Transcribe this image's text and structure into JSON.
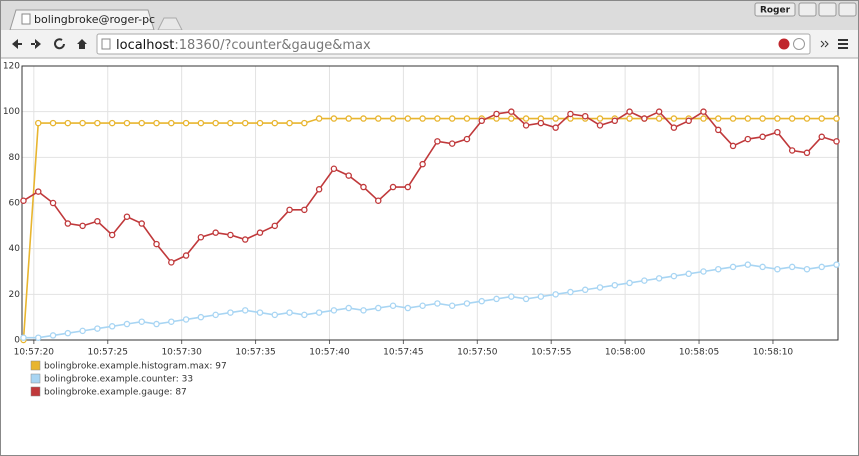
{
  "browser": {
    "tab_title": "bolingbroke@roger-pc",
    "user": "Roger",
    "url_host": "localhost",
    "url_rest": ":18360/?counter&gauge&max"
  },
  "chart_data": {
    "type": "line",
    "x": [
      19.3,
      20.3,
      21.3,
      22.3,
      23.3,
      24.3,
      25.3,
      26.3,
      27.3,
      28.3,
      29.3,
      30.3,
      31.3,
      32.3,
      33.3,
      34.3,
      35.3,
      36.3,
      37.3,
      38.3,
      39.3,
      40.3,
      41.3,
      42.3,
      43.3,
      44.3,
      45.3,
      46.3,
      47.3,
      48.3,
      49.3,
      50.3,
      51.3,
      52.3,
      53.3,
      54.3,
      55.3,
      56.3,
      57.3,
      58.3,
      59.3,
      60.3,
      61.3,
      62.3,
      63.3,
      64.3,
      65.3,
      66.3,
      67.3,
      68.3,
      69.3,
      70.3,
      71.3,
      72.3,
      73.3,
      74.3
    ],
    "xlim": [
      19.2,
      74.4
    ],
    "xticks": [
      {
        "value": 20,
        "label": "10:57:20"
      },
      {
        "value": 25,
        "label": "10:57:25"
      },
      {
        "value": 30,
        "label": "10:57:30"
      },
      {
        "value": 35,
        "label": "10:57:35"
      },
      {
        "value": 40,
        "label": "10:57:40"
      },
      {
        "value": 45,
        "label": "10:57:45"
      },
      {
        "value": 50,
        "label": "10:57:50"
      },
      {
        "value": 55,
        "label": "10:57:55"
      },
      {
        "value": 60,
        "label": "10:58:00"
      },
      {
        "value": 65,
        "label": "10:58:05"
      },
      {
        "value": 70,
        "label": "10:58:10"
      }
    ],
    "ylim": [
      0,
      120
    ],
    "yticks": [
      0,
      20,
      40,
      60,
      80,
      100,
      120
    ],
    "grid": true,
    "series": [
      {
        "name": "bolingbroke.example.histogram.max: 97",
        "color": "#e8b52f",
        "values": [
          0,
          95,
          95,
          95,
          95,
          95,
          95,
          95,
          95,
          95,
          95,
          95,
          95,
          95,
          95,
          95,
          95,
          95,
          95,
          95,
          97,
          97,
          97,
          97,
          97,
          97,
          97,
          97,
          97,
          97,
          97,
          97,
          97,
          97,
          97,
          97,
          97,
          97,
          97,
          97,
          97,
          97,
          97,
          97,
          97,
          97,
          97,
          97,
          97,
          97,
          97,
          97,
          97,
          97,
          97,
          97
        ]
      },
      {
        "name": "bolingbroke.example.counter: 33",
        "color": "#a8d5f3",
        "values": [
          1,
          1,
          2,
          3,
          4,
          5,
          6,
          7,
          8,
          7,
          8,
          9,
          10,
          11,
          12,
          13,
          12,
          11,
          12,
          11,
          12,
          13,
          14,
          13,
          14,
          15,
          14,
          15,
          16,
          15,
          16,
          17,
          18,
          19,
          18,
          19,
          20,
          21,
          22,
          23,
          24,
          25,
          26,
          27,
          28,
          29,
          30,
          31,
          32,
          33,
          32,
          31,
          32,
          31,
          32,
          33
        ]
      },
      {
        "name": "bolingbroke.example.gauge: 87",
        "color": "#c0393b",
        "values": [
          61,
          65,
          60,
          51,
          50,
          52,
          46,
          54,
          51,
          42,
          34,
          37,
          45,
          47,
          46,
          44,
          47,
          50,
          57,
          57,
          66,
          75,
          72,
          67,
          61,
          67,
          67,
          77,
          87,
          86,
          88,
          96,
          99,
          100,
          94,
          95,
          93,
          99,
          98,
          94,
          96,
          100,
          97,
          100,
          93,
          96,
          100,
          92,
          85,
          88,
          89,
          91,
          83,
          82,
          89,
          87
        ]
      }
    ]
  }
}
